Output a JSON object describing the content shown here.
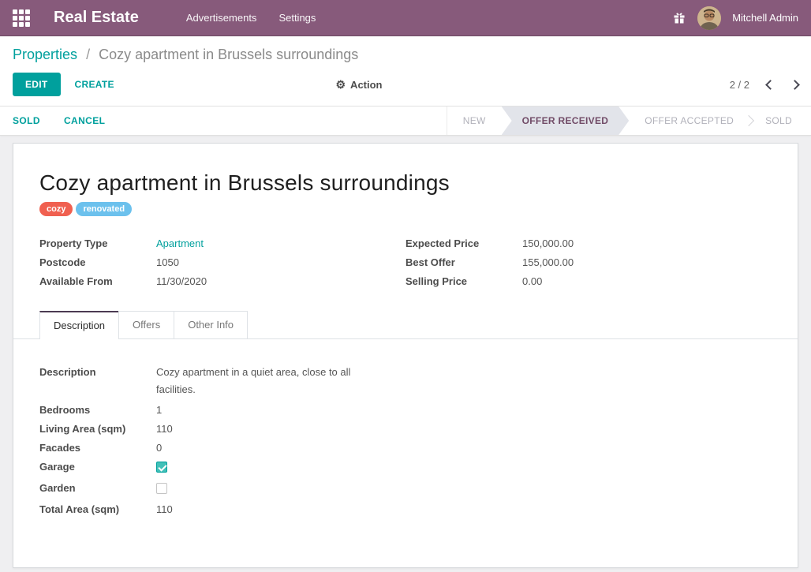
{
  "colors": {
    "navbar_bg": "#875A7B",
    "accent_teal": "#00A09D",
    "status_active_text": "#714B67",
    "status_active_bg": "#e2e4ea",
    "tag_cozy": "#F06050",
    "tag_renovated": "#6CC1ED"
  },
  "navbar": {
    "brand": "Real Estate",
    "menus": [
      "Advertisements",
      "Settings"
    ],
    "user": "Mitchell Admin",
    "icons": [
      "apps-grid-icon",
      "gift-icon",
      "avatar"
    ]
  },
  "control_panel": {
    "breadcrumb": {
      "parent": "Properties",
      "separator": "/",
      "current": "Cozy apartment in Brussels surroundings"
    },
    "edit_label": "EDIT",
    "create_label": "CREATE",
    "action_label": "Action",
    "pager_value": "2 / 2"
  },
  "statusbar": {
    "buttons": [
      "SOLD",
      "CANCEL"
    ],
    "steps": [
      {
        "label": "NEW",
        "active": false
      },
      {
        "label": "OFFER RECEIVED",
        "active": true
      },
      {
        "label": "OFFER ACCEPTED",
        "active": false
      },
      {
        "label": "SOLD",
        "active": false
      }
    ]
  },
  "sheet": {
    "title": "Cozy apartment in Brussels surroundings",
    "tags": [
      {
        "label": "cozy",
        "color": "#F06050"
      },
      {
        "label": "renovated",
        "color": "#6CC1ED"
      }
    ],
    "fields_left": [
      {
        "label": "Property Type",
        "value": "Apartment",
        "link": true
      },
      {
        "label": "Postcode",
        "value": "1050"
      },
      {
        "label": "Available From",
        "value": "11/30/2020"
      }
    ],
    "fields_right": [
      {
        "label": "Expected Price",
        "value": "150,000.00"
      },
      {
        "label": "Best Offer",
        "value": "155,000.00"
      },
      {
        "label": "Selling Price",
        "value": "0.00"
      }
    ],
    "tabs": [
      {
        "label": "Description",
        "active": true
      },
      {
        "label": "Offers",
        "active": false
      },
      {
        "label": "Other Info",
        "active": false
      }
    ],
    "tab_fields": [
      {
        "label": "Description",
        "value": "Cozy apartment in a quiet area, close to all facilities.",
        "wrap": true
      },
      {
        "label": "Bedrooms",
        "value": "1"
      },
      {
        "label": "Living Area (sqm)",
        "value": "110"
      },
      {
        "label": "Facades",
        "value": "0"
      },
      {
        "label": "Garage",
        "checkbox": true,
        "checked": true
      },
      {
        "label": "Garden",
        "checkbox": true,
        "checked": false
      },
      {
        "label": "Total Area (sqm)",
        "value": "110"
      }
    ]
  }
}
